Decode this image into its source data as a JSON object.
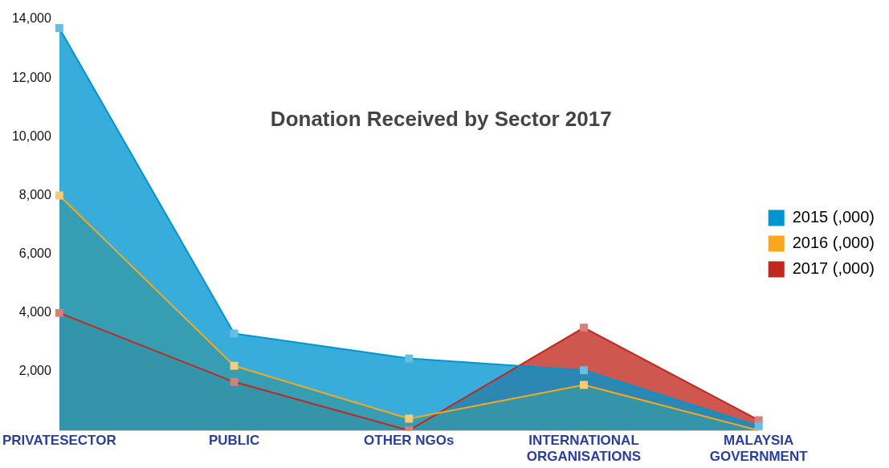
{
  "chart_data": {
    "type": "area",
    "title": "Donation Received by Sector 2017",
    "categories": [
      "PRIVATESECTOR",
      "PUBLIC",
      "OTHER NGOs",
      "INTERNATIONAL ORGANISATIONS",
      "MALAYSIA GOVERNMENT"
    ],
    "series": [
      {
        "name": "2015 (,000)",
        "color": "#0095d0",
        "values": [
          13700,
          3300,
          2450,
          2050,
          150
        ]
      },
      {
        "name": "2016 (,000)",
        "color": "#f7a81b",
        "values": [
          8000,
          2200,
          400,
          1550,
          0
        ]
      },
      {
        "name": "2017 (,000)",
        "color": "#c0281e",
        "values": [
          4000,
          1650,
          0,
          3500,
          350
        ]
      }
    ],
    "ylim": [
      0,
      14000
    ],
    "yticks": [
      {
        "value": 2000,
        "label": "2,000"
      },
      {
        "value": 4000,
        "label": "4,000"
      },
      {
        "value": 6000,
        "label": "6,000"
      },
      {
        "value": 8000,
        "label": "8,000"
      },
      {
        "value": 10000,
        "label": "10,000"
      },
      {
        "value": 12000,
        "label": "12,000"
      },
      {
        "value": 14000,
        "label": "14,000"
      }
    ],
    "grid": false,
    "legend": "right",
    "marker": "square"
  }
}
